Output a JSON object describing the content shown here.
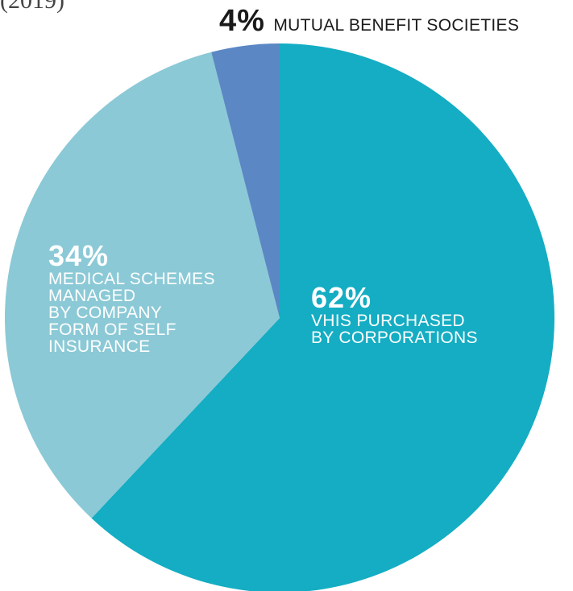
{
  "partial_title": "(2019)",
  "chart_data": {
    "type": "pie",
    "slices": [
      {
        "label": "VHIS PURCHASED\nBY CORPORATIONS",
        "value": 62,
        "value_label": "62%",
        "color": "#14adc3"
      },
      {
        "label": "MEDICAL SCHEMES\nMANAGED\nBY COMPANY\nFORM OF SELF\nINSURANCE",
        "value": 34,
        "value_label": "34%",
        "color": "#8bc9d6"
      },
      {
        "label": "MUTUAL BENEFIT SOCIETIES",
        "value": 4,
        "value_label": "4%",
        "color": "#5b88c4"
      }
    ]
  }
}
